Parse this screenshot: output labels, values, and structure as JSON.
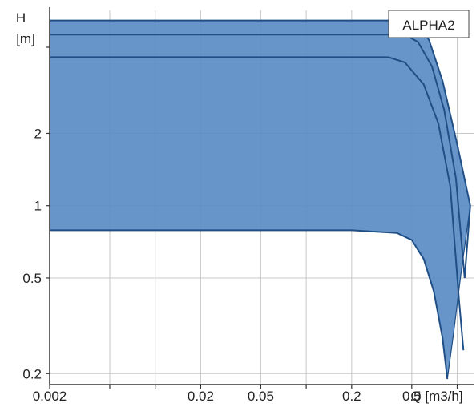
{
  "chart_data": {
    "type": "area",
    "title": "ALPHA2",
    "ylabel_line1": "H",
    "ylabel_line2": "[m]",
    "xlabel": "Q [m3/h]",
    "x_scale": "log",
    "y_scale": "log",
    "xlim": [
      0.002,
      1.3
    ],
    "ylim": [
      0.18,
      6.5
    ],
    "x_ticks": [
      {
        "value": 0.002,
        "label": "0.002"
      },
      {
        "value": 0.02,
        "label": "0.02"
      },
      {
        "value": 0.05,
        "label": "0.05"
      },
      {
        "value": 0.2,
        "label": "0.2"
      },
      {
        "value": 0.5,
        "label": "0.5"
      }
    ],
    "x_grid": [
      0.002,
      0.005,
      0.01,
      0.02,
      0.05,
      0.1,
      0.2,
      0.5,
      1.0
    ],
    "y_ticks": [
      {
        "value": 0.2,
        "label": "0.2"
      },
      {
        "value": 0.5,
        "label": "0.5"
      },
      {
        "value": 1,
        "label": "1"
      },
      {
        "value": 2,
        "label": "2"
      }
    ],
    "y_grid": [
      0.2,
      0.5,
      1,
      2
    ],
    "grid": true,
    "legend_position": "top-right",
    "colors": {
      "fill": "#5b8cc4",
      "line": "#1f4f86",
      "grid": "#c8c8c8",
      "axis": "#333333"
    },
    "envelope": {
      "upper": [
        [
          0.002,
          5.9
        ],
        [
          0.02,
          5.9
        ],
        [
          0.2,
          5.9
        ],
        [
          0.48,
          5.9
        ],
        [
          0.55,
          5.6
        ],
        [
          0.65,
          4.9
        ],
        [
          0.8,
          3.3
        ],
        [
          1.0,
          1.8
        ],
        [
          1.22,
          1.0
        ]
      ],
      "lower": [
        [
          0.002,
          0.79
        ],
        [
          0.02,
          0.79
        ],
        [
          0.2,
          0.79
        ],
        [
          0.4,
          0.77
        ],
        [
          0.5,
          0.72
        ],
        [
          0.6,
          0.6
        ],
        [
          0.7,
          0.44
        ],
        [
          0.8,
          0.28
        ],
        [
          0.86,
          0.19
        ],
        [
          0.95,
          0.3
        ],
        [
          1.05,
          0.5
        ],
        [
          1.22,
          1.0
        ]
      ]
    },
    "series": [
      {
        "values": [
          [
            0.002,
            5.9
          ],
          [
            0.2,
            5.9
          ],
          [
            0.48,
            5.9
          ],
          [
            0.55,
            5.6
          ],
          [
            0.65,
            4.9
          ],
          [
            0.8,
            3.3
          ],
          [
            1.0,
            1.8
          ],
          [
            1.22,
            1.0
          ]
        ]
      },
      {
        "values": [
          [
            0.002,
            5.15
          ],
          [
            0.1,
            5.15
          ],
          [
            0.45,
            5.15
          ],
          [
            0.55,
            4.8
          ],
          [
            0.68,
            3.8
          ],
          [
            0.82,
            2.5
          ],
          [
            0.98,
            1.3
          ],
          [
            1.12,
            0.5
          ],
          [
            1.22,
            1.0
          ]
        ]
      },
      {
        "values": [
          [
            0.002,
            4.15
          ],
          [
            0.1,
            4.15
          ],
          [
            0.35,
            4.15
          ],
          [
            0.45,
            3.95
          ],
          [
            0.6,
            3.2
          ],
          [
            0.75,
            2.2
          ],
          [
            0.9,
            1.2
          ],
          [
            1.03,
            0.4
          ],
          [
            1.1,
            0.25
          ]
        ]
      },
      {
        "values": [
          [
            0.002,
            0.79
          ],
          [
            0.2,
            0.79
          ],
          [
            0.4,
            0.77
          ],
          [
            0.5,
            0.72
          ],
          [
            0.6,
            0.6
          ],
          [
            0.7,
            0.44
          ],
          [
            0.8,
            0.28
          ],
          [
            0.86,
            0.19
          ]
        ]
      }
    ]
  }
}
